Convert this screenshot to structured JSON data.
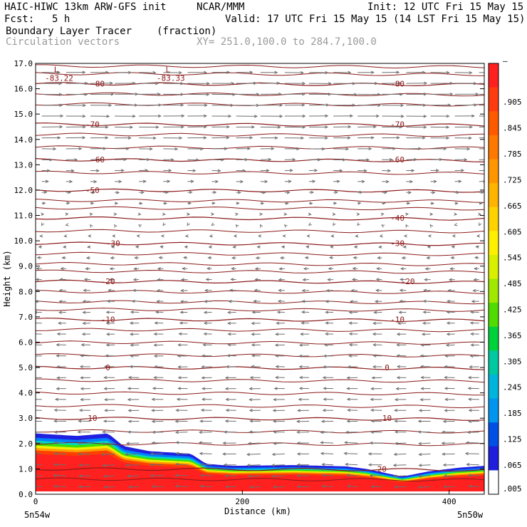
{
  "header": {
    "model": "HAIC-HIWC 13km ARW-GFS init",
    "org": "NCAR/MMM",
    "init": "Init: 12 UTC Fri 15 May 15",
    "fcst_label": "Fcst:",
    "fcst_value": "5 h",
    "valid": "Valid: 17 UTC Fri 15 May 15 (14 LST Fri 15 May 15)",
    "field_name": "Boundary Layer Tracer",
    "field_units": "(fraction)",
    "vector_name": "Circulation vectors",
    "xy_range": "XY= 251.0,100.0 to 284.7,100.0"
  },
  "chart_data": {
    "type": "heatmap",
    "title": "Boundary Layer Tracer",
    "xlabel": "Distance (km)",
    "ylabel": "Height (km)",
    "xlim": [
      0,
      434
    ],
    "ylim": [
      0,
      17
    ],
    "x_ticks": [
      "0",
      "200",
      "400"
    ],
    "x_tick_values": [
      0,
      200,
      400
    ],
    "y_ticks": [
      "0.0",
      "1.0",
      "2.0",
      "3.0",
      "4.0",
      "5.0",
      "6.0",
      "7.0",
      "8.0",
      "9.0",
      "10.0",
      "11.0",
      "12.0",
      "13.0",
      "14.0",
      "15.0",
      "16.0",
      "17.0"
    ],
    "x_end_labels": {
      "left": "5n54w",
      "right": "5n50w"
    },
    "colorbar": {
      "labels": [
        "–",
        ".905",
        ".845",
        ".785",
        ".725",
        ".665",
        ".605",
        ".545",
        ".485",
        ".425",
        ".365",
        ".305",
        ".245",
        ".185",
        ".125",
        ".065",
        ".005"
      ],
      "colors": [
        "#ff2020",
        "#ff3c10",
        "#ff5a00",
        "#ff7800",
        "#ff9600",
        "#ffb400",
        "#ffd200",
        "#fff000",
        "#d8f000",
        "#a0e800",
        "#50dc00",
        "#00d23c",
        "#00c8a0",
        "#00b4dc",
        "#0096f0",
        "#0050e6",
        "#1e1edc",
        "#ffffff"
      ]
    },
    "tracer_top_km": [
      [
        0,
        2.4
      ],
      [
        40,
        2.3
      ],
      [
        70,
        2.4
      ],
      [
        85,
        1.9
      ],
      [
        110,
        1.7
      ],
      [
        150,
        1.6
      ],
      [
        165,
        1.2
      ],
      [
        190,
        1.12
      ],
      [
        250,
        1.15
      ],
      [
        300,
        1.1
      ],
      [
        320,
        1.0
      ],
      [
        345,
        0.78
      ],
      [
        355,
        0.7
      ],
      [
        380,
        0.9
      ],
      [
        410,
        1.05
      ],
      [
        434,
        1.12
      ]
    ],
    "temperature_isotherms_C": [
      {
        "value": -80,
        "height_km": 16.2,
        "label_x": [
          60,
          350
        ]
      },
      {
        "value": -70,
        "height_km": 14.6,
        "label_x": [
          55,
          350
        ]
      },
      {
        "value": -60,
        "height_km": 13.2,
        "label_x": [
          60,
          350
        ]
      },
      {
        "value": -50,
        "height_km": 12.0,
        "label_x": [
          55,
          null
        ]
      },
      {
        "value": -40,
        "height_km": 10.9,
        "label_x": [
          null,
          350
        ]
      },
      {
        "value": -30,
        "height_km": 9.9,
        "label_x": [
          75,
          350
        ]
      },
      {
        "value": -20,
        "height_km": 8.4,
        "label_x": [
          70,
          360
        ]
      },
      {
        "value": -10,
        "height_km": 6.9,
        "label_x": [
          70,
          350
        ]
      },
      {
        "value": 0,
        "height_km": 5.0,
        "label_x": [
          70,
          340
        ]
      },
      {
        "value": 10,
        "height_km": 3.0,
        "label_x": [
          55,
          340
        ]
      },
      {
        "value": 20,
        "height_km": 1.0,
        "label_x": [
          null,
          335
        ]
      }
    ],
    "extra_isotherm_heights_km": [
      16.9,
      16.6,
      15.8,
      15.4,
      14.2,
      13.7,
      12.7,
      11.6,
      11.3,
      10.4,
      9.5,
      9.1,
      8.8,
      8.0,
      7.6,
      7.3,
      6.5,
      6.0,
      5.5,
      4.5,
      4.0,
      3.5,
      2.5,
      2.0,
      0.6
    ],
    "low_centers": [
      {
        "label": "L",
        "value": "-83.22",
        "x_km": 20,
        "y_km": 16.7
      },
      {
        "label": "L",
        "value": "-83.33",
        "x_km": 128,
        "y_km": 16.7
      }
    ],
    "wind_profile": [
      {
        "z_km": 16.9,
        "u": 10
      },
      {
        "z_km": 16.0,
        "u": 14
      },
      {
        "z_km": 15.0,
        "u": 13
      },
      {
        "z_km": 14.0,
        "u": 11
      },
      {
        "z_km": 13.0,
        "u": 6
      },
      {
        "z_km": 12.0,
        "u": 3
      },
      {
        "z_km": 11.0,
        "u": 1
      },
      {
        "z_km": 10.3,
        "u": -1
      },
      {
        "z_km": 9.0,
        "u": -3
      },
      {
        "z_km": 7.0,
        "u": -5
      },
      {
        "z_km": 5.0,
        "u": -6
      },
      {
        "z_km": 3.0,
        "u": -7
      },
      {
        "z_km": 1.5,
        "u": -8
      },
      {
        "z_km": 0.3,
        "u": -7
      }
    ],
    "grid": false
  },
  "colors": {
    "isotherm": "#8b1a1a",
    "vector": "#6e6e6e",
    "header_gray": "#9a9a9a"
  }
}
